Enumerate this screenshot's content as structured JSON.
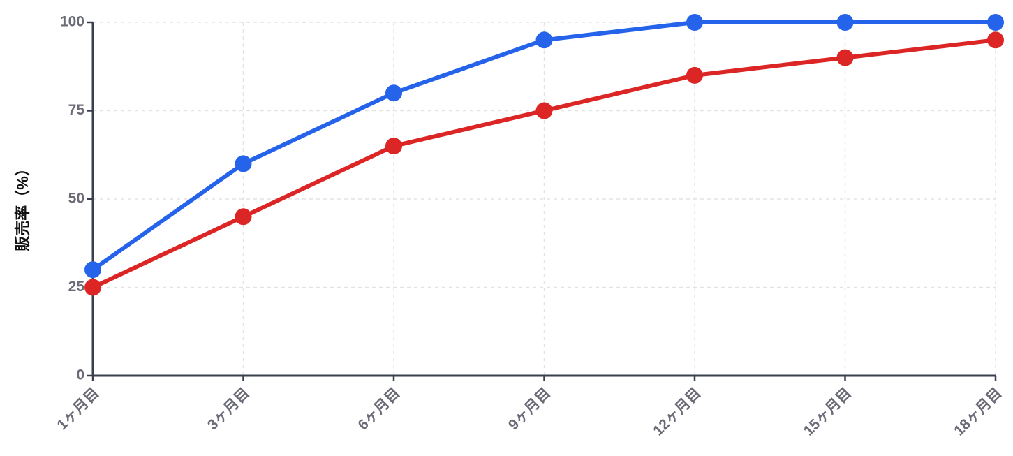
{
  "chart_data": {
    "type": "line",
    "y_label": "販売率（%）",
    "categories": [
      "1ヶ月目",
      "3ヶ月目",
      "6ヶ月目",
      "9ヶ月目",
      "12ヶ月目",
      "15ヶ月目",
      "18ヶ月目"
    ],
    "series": [
      {
        "color": "#2563eb",
        "values": [
          30,
          60,
          80,
          95,
          100,
          100,
          100
        ]
      },
      {
        "color": "#dc2626",
        "values": [
          25,
          45,
          65,
          75,
          85,
          90,
          95
        ]
      }
    ],
    "ylim": [
      0,
      100
    ],
    "yticks": [
      0,
      25,
      50,
      75,
      100
    ],
    "grid": true
  }
}
